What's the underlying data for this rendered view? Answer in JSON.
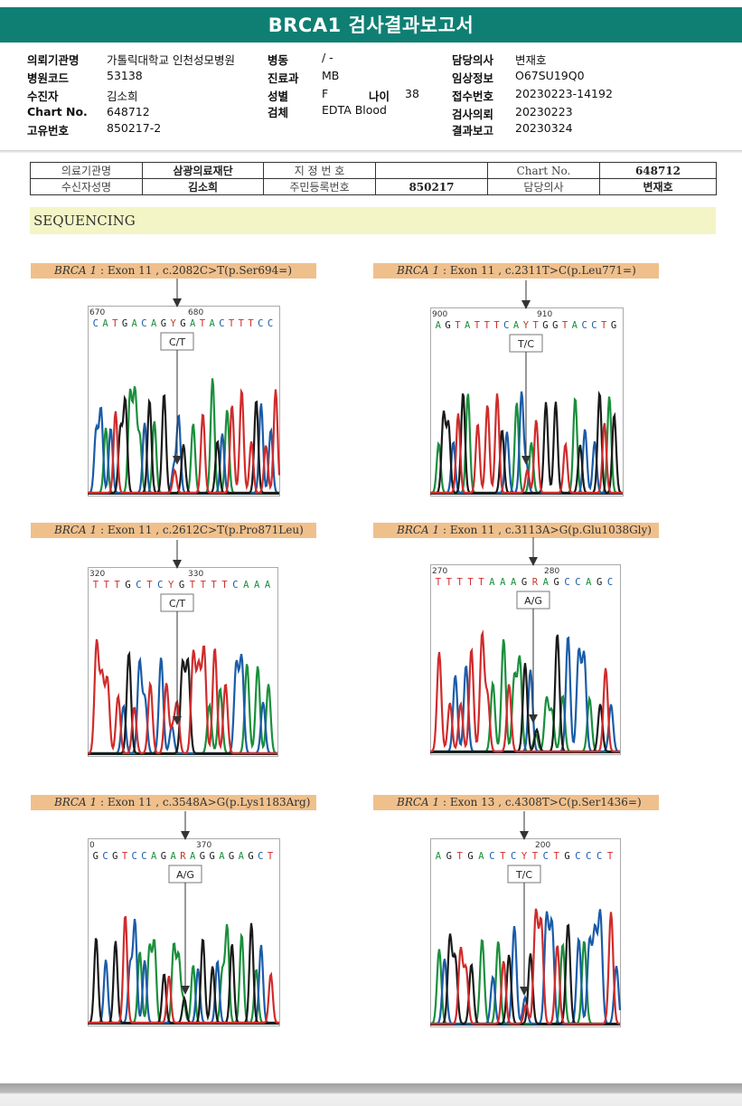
{
  "title": "BRCA1 검사결과보고서",
  "patient_info": {
    "col1": [
      {
        "label": "의뢰기관명",
        "value": "가톨릭대학교 인천성모병원"
      },
      {
        "label": "병원코드",
        "value": "53138"
      },
      {
        "label": "수진자",
        "value": "김소희"
      },
      {
        "label": "Chart No.",
        "value": "648712"
      },
      {
        "label": "고유번호",
        "value": "850217-2"
      }
    ],
    "col2": [
      {
        "label": "병동",
        "value": "/ -"
      },
      {
        "label": "진료과",
        "value": "MB"
      },
      {
        "label": "성별",
        "value": "F"
      },
      {
        "label": "검체",
        "value": "EDTA Blood"
      }
    ],
    "age": {
      "label": "나이",
      "value": "38"
    },
    "col3": [
      {
        "label": "담당의사",
        "value": "변재호"
      },
      {
        "label": "임상정보",
        "value": "O67SU19Q0"
      },
      {
        "label": "접수번호",
        "value": "20230223-14192"
      },
      {
        "label": "검사의뢰",
        "value": "20230223"
      },
      {
        "label": "결과보고",
        "value": "20230324"
      }
    ]
  },
  "meta_table": {
    "row1": [
      "의료기관명",
      "삼광의료재단",
      "지 정 번 호",
      "",
      "Chart No.",
      "648712"
    ],
    "row2": [
      "수신자성명",
      "김소희",
      "주민등록번호",
      "850217",
      "담당의사",
      "변재호"
    ]
  },
  "section_title": "SEQUENCING",
  "colors": {
    "header": "#0f7f73",
    "A": "#1a8f3c",
    "C": "#1a5ca8",
    "G": "#1a1a1a",
    "T": "#d12b2b"
  },
  "panels": [
    {
      "gene": "BRCA 1",
      "desc": " : Exon 11 , c.2082C>T(p.Ser694=)",
      "seq": "CATGACAGYGATACTTTCC",
      "pos_left": "670",
      "pos_right": "680",
      "call": "C/T",
      "het": "Y"
    },
    {
      "gene": "BRCA 1",
      "desc": " : Exon 11 , c.2311T>C(p.Leu771=)",
      "seq": "AGTATTTCAYTGGTACCTG",
      "pos_left": "900",
      "pos_right": "910",
      "call": "T/C",
      "het": "Y"
    },
    {
      "gene": "BRCA 1",
      "desc": " : Exon 11 , c.2612C>T(p.Pro871Leu)",
      "seq": "TTTGCTCYGTTTTCAAA",
      "pos_left": "320",
      "pos_right": "330",
      "call": "C/T",
      "het": "Y"
    },
    {
      "gene": "BRCA 1",
      "desc": " : Exon 11 , c.3113A>G(p.Glu1038Gly)",
      "seq": "TTTTTAAAGRAGCCAGC",
      "pos_left": "270",
      "pos_right": "280",
      "call": "A/G",
      "het": "R"
    },
    {
      "gene": "BRCA 1",
      "desc": " : Exon 11 , c.3548A>G(p.Lys1183Arg)",
      "seq": "GCGTCCAGARAGGAGAGCT",
      "pos_left": "0",
      "pos_right": "370",
      "call": "A/G",
      "het": "R"
    },
    {
      "gene": "BRCA 1",
      "desc": " : Exon 13 , c.4308T>C(p.Ser1436=)",
      "seq": "AGTGACTCYTCTGCCCT",
      "pos_left": "",
      "pos_right": "200",
      "call": "T/C",
      "het": "Y"
    }
  ]
}
